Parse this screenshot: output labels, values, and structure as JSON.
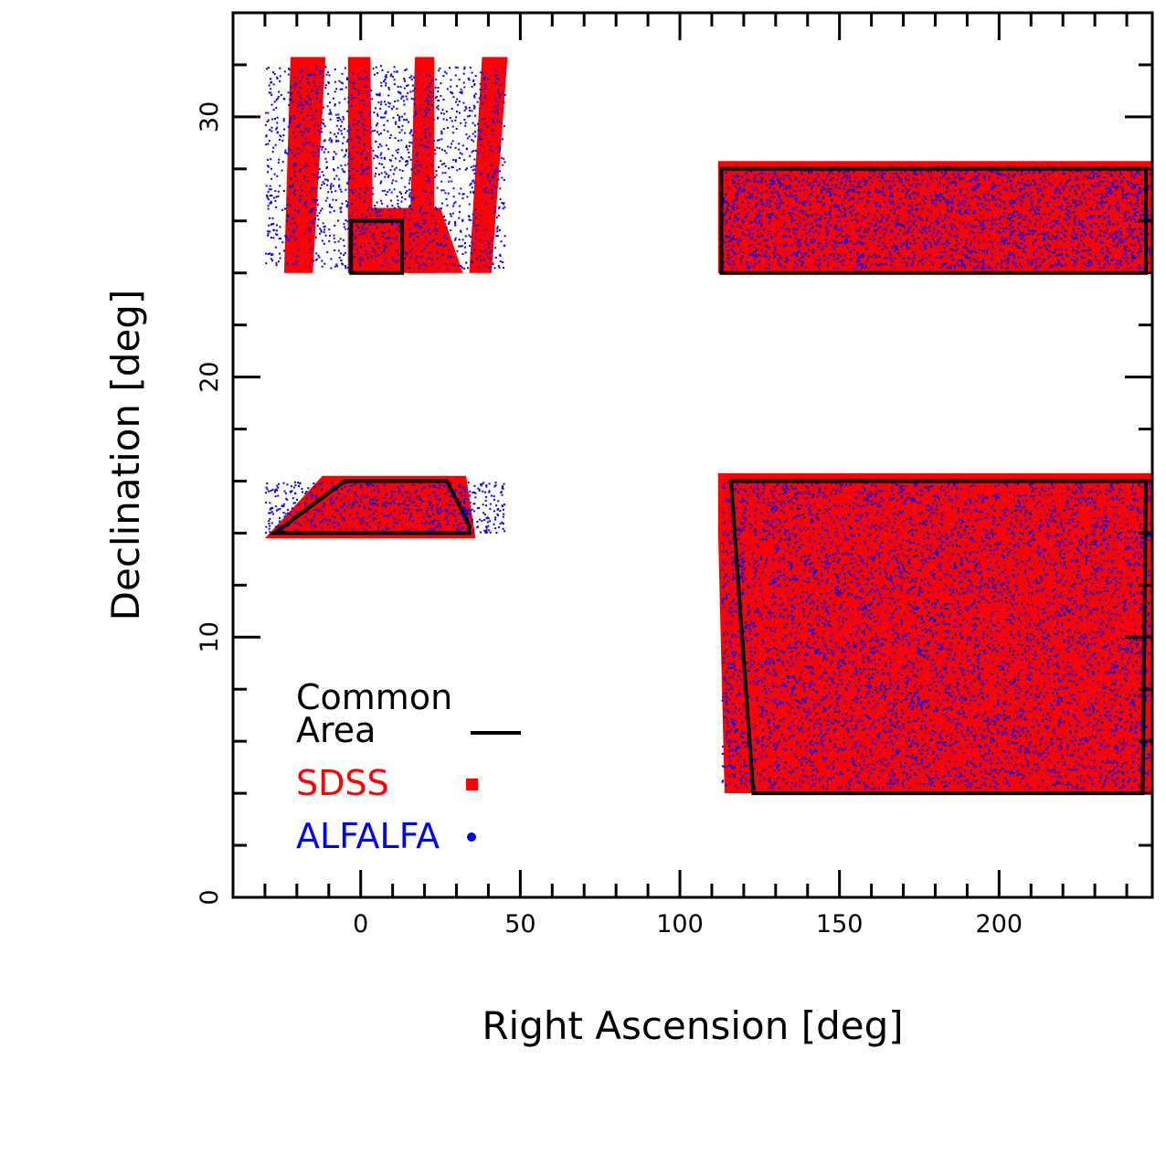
{
  "chart_data": {
    "type": "scatter",
    "title": "",
    "xlabel": "Right Ascension [deg]",
    "ylabel": "Declination [deg]",
    "xlim": [
      -40,
      248
    ],
    "ylim": [
      0,
      34
    ],
    "xticks": [
      0,
      50,
      100,
      150,
      200
    ],
    "yticks": [
      0,
      10,
      20,
      30
    ],
    "grid": false,
    "legend": {
      "position": "lower-left",
      "entries": [
        {
          "label_lines": [
            "Common",
            "Area"
          ],
          "marker": "line",
          "color": "#000000"
        },
        {
          "label_lines": [
            "SDSS"
          ],
          "marker": "square",
          "color": "#ff0000"
        },
        {
          "label_lines": [
            "ALFALFA"
          ],
          "marker": "dot",
          "color": "#0000ff"
        }
      ]
    },
    "series": [
      {
        "name": "SDSS",
        "color": "#ff0000",
        "regions": [
          {
            "id": "north-strip",
            "polygon": [
              [
                112,
                24
              ],
              [
                248,
                24
              ],
              [
                248,
                28.3
              ],
              [
                112,
                28.3
              ]
            ]
          },
          {
            "id": "south-block",
            "polygon": [
              [
                114,
                4
              ],
              [
                248,
                4
              ],
              [
                248,
                16.3
              ],
              [
                112,
                16.3
              ],
              [
                112,
                14
              ]
            ]
          },
          {
            "id": "north-fan-1",
            "polygon": [
              [
                -24,
                24
              ],
              [
                -15,
                24
              ],
              [
                -11,
                32.3
              ],
              [
                -22,
                32.3
              ]
            ]
          },
          {
            "id": "north-fan-2",
            "polygon": [
              [
                -4,
                24
              ],
              [
                4,
                24
              ],
              [
                3,
                32.3
              ],
              [
                -4,
                32.3
              ]
            ]
          },
          {
            "id": "north-fan-3",
            "polygon": [
              [
                15,
                24
              ],
              [
                23,
                24
              ],
              [
                23,
                32.3
              ],
              [
                17,
                32.3
              ]
            ]
          },
          {
            "id": "north-fan-4",
            "polygon": [
              [
                34,
                24
              ],
              [
                41,
                24
              ],
              [
                46,
                32.3
              ],
              [
                38,
                32.3
              ]
            ]
          },
          {
            "id": "north-central-patch",
            "polygon": [
              [
                -4,
                24
              ],
              [
                32,
                24
              ],
              [
                25,
                26.5
              ],
              [
                -4,
                26.5
              ]
            ]
          },
          {
            "id": "south-trapezoid",
            "polygon": [
              [
                -30,
                13.8
              ],
              [
                36,
                13.8
              ],
              [
                33,
                16.2
              ],
              [
                -12,
                16.2
              ]
            ]
          }
        ]
      },
      {
        "name": "ALFALFA",
        "color": "#0000ff",
        "regions": [
          {
            "id": "north-strip",
            "bounds": [
              [
                113,
                247
              ],
              [
                24.2,
                28.1
              ]
            ],
            "count": 2600
          },
          {
            "id": "south-block",
            "bounds": [
              [
                113,
                247
              ],
              [
                4.2,
                16.1
              ]
            ],
            "count": 7000
          },
          {
            "id": "north-fall",
            "bounds": [
              [
                -30,
                45
              ],
              [
                24.2,
                32
              ]
            ],
            "count": 1700
          },
          {
            "id": "south-fall",
            "bounds": [
              [
                -30,
                45
              ],
              [
                14,
                16
              ]
            ],
            "count": 650
          }
        ]
      },
      {
        "name": "Common Area",
        "color": "#000000",
        "polygons": [
          [
            [
              113,
              24
            ],
            [
              246,
              24
            ],
            [
              246,
              28
            ],
            [
              113,
              28
            ]
          ],
          [
            [
              -3,
              24
            ],
            [
              13,
              24
            ],
            [
              13,
              26
            ],
            [
              -3,
              26
            ]
          ],
          [
            [
              -27,
              14
            ],
            [
              34,
              14
            ],
            [
              34,
              14.3
            ],
            [
              27,
              16
            ],
            [
              17,
              16
            ],
            [
              -5,
              16
            ]
          ],
          [
            [
              123,
              4
            ],
            [
              245,
              4
            ],
            [
              246,
              16
            ],
            [
              116,
              16
            ]
          ]
        ]
      }
    ]
  }
}
